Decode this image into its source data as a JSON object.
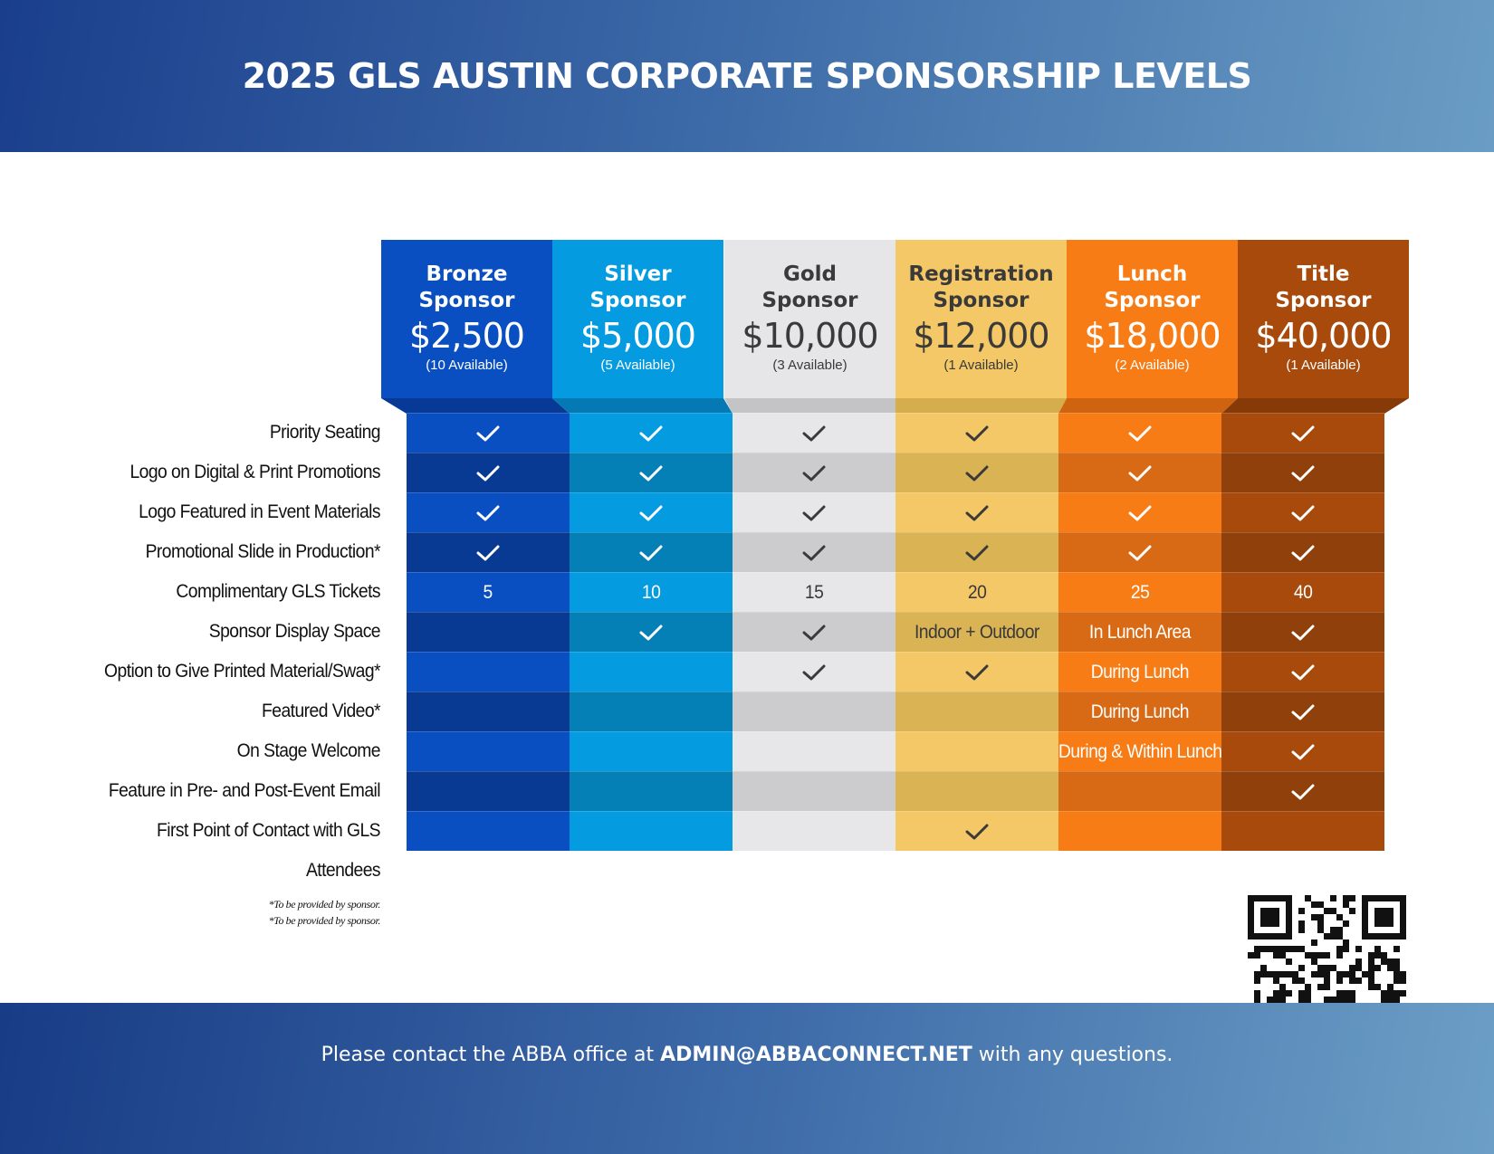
{
  "title": "2025 GLS AUSTIN CORPORATE SPONSORSHIP LEVELS",
  "tiers": [
    {
      "name": "Bronze\nSponsor",
      "price": "$2,500",
      "availability": "(10 Available)",
      "header_color": "#0a4fc2",
      "fold_color": "#073a96",
      "text_color": "#ffffff",
      "cell_colors": [
        "#0a4fc2",
        "#083a93"
      ],
      "check_color": "#ffffff"
    },
    {
      "name": "Silver\nSponsor",
      "price": "$5,000",
      "availability": "(5 Available)",
      "header_color": "#049be0",
      "fold_color": "#0479b3",
      "text_color": "#ffffff",
      "cell_colors": [
        "#049be0",
        "#0480b6"
      ],
      "check_color": "#ffffff"
    },
    {
      "name": "Gold\nSponsor",
      "price": "$10,000",
      "availability": "(3 Available)",
      "header_color": "#e6e6e8",
      "fold_color": "#c4c4c6",
      "text_color": "#3a3a3a",
      "cell_colors": [
        "#e7e7e9",
        "#cccccf"
      ],
      "check_color": "#3a3a3a"
    },
    {
      "name": "Registration\nSponsor",
      "price": "$12,000",
      "availability": "(1 Available)",
      "header_color": "#f4c866",
      "fold_color": "#d6ad4d",
      "text_color": "#3a3a3a",
      "cell_colors": [
        "#f4c866",
        "#d9b354"
      ],
      "check_color": "#3a3a3a"
    },
    {
      "name": "Lunch\nSponsor",
      "price": "$18,000",
      "availability": "(2 Available)",
      "header_color": "#f77c15",
      "fold_color": "#cf6410",
      "text_color": "#ffffff",
      "cell_colors": [
        "#f77c15",
        "#d86a15"
      ],
      "check_color": "#ffffff"
    },
    {
      "name": "Title\nSponsor",
      "price": "$40,000",
      "availability": "(1 Available)",
      "header_color": "#a74a0c",
      "fold_color": "#863a08",
      "text_color": "#ffffff",
      "cell_colors": [
        "#a74a0c",
        "#8f400b"
      ],
      "check_color": "#ffffff"
    }
  ],
  "rows": [
    {
      "label": "Priority Seating",
      "cells": [
        "check",
        "check",
        "check",
        "check",
        "check",
        "check"
      ]
    },
    {
      "label": "Logo on Digital & Print Promotions",
      "cells": [
        "check",
        "check",
        "check",
        "check",
        "check",
        "check"
      ]
    },
    {
      "label": "Logo Featured in Event Materials",
      "cells": [
        "check",
        "check",
        "check",
        "check",
        "check",
        "check"
      ]
    },
    {
      "label": "Promotional Slide in Production*",
      "cells": [
        "check",
        "check",
        "check",
        "check",
        "check",
        "check"
      ]
    },
    {
      "label": "Complimentary GLS Tickets",
      "cells": [
        "5",
        "10",
        "15",
        "20",
        "25",
        "40"
      ]
    },
    {
      "label": "Sponsor Display Space",
      "cells": [
        "",
        "check",
        "check",
        "Indoor + Outdoor",
        "In Lunch Area",
        "check"
      ]
    },
    {
      "label": "Option to Give Printed Material/Swag*",
      "cells": [
        "",
        "",
        "check",
        "check",
        "During Lunch",
        "check"
      ]
    },
    {
      "label": "Featured Video*",
      "cells": [
        "",
        "",
        "",
        "",
        "During Lunch",
        "check"
      ]
    },
    {
      "label": "On Stage Welcome",
      "cells": [
        "",
        "",
        "",
        "",
        "During & Within Lunch",
        "check"
      ]
    },
    {
      "label": "Feature in Pre- and Post-Event Email",
      "cells": [
        "",
        "",
        "",
        "",
        "",
        "check"
      ]
    },
    {
      "label": "First Point of Contact with GLS Attendees",
      "cells": [
        "",
        "",
        "",
        "check",
        "",
        ""
      ]
    }
  ],
  "notes": [
    "*To be provided by sponsor.",
    "*To be provided by sponsor."
  ],
  "footer": {
    "prefix": "Please contact the ABBA office at ",
    "email": "ADMIN@ABBACONNECT.NET",
    "suffix": " with any questions."
  },
  "qr_icon": "qr-code-icon"
}
